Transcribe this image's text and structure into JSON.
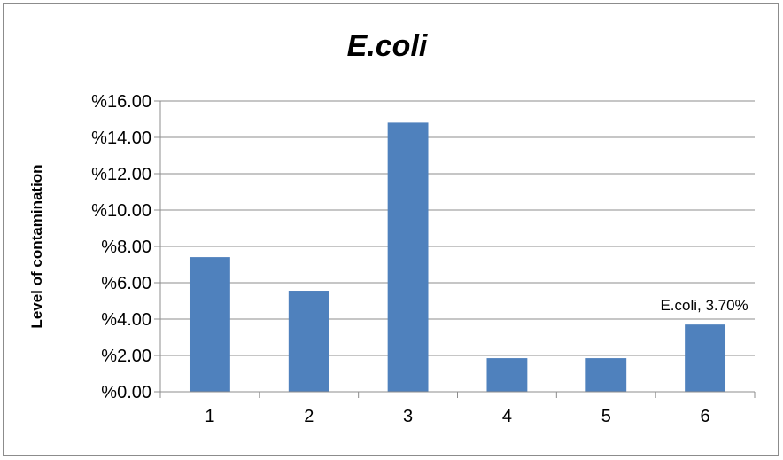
{
  "chart_data": {
    "type": "bar",
    "title": "E.coli",
    "xlabel": "",
    "ylabel": "Level of contamination",
    "categories": [
      "1",
      "2",
      "3",
      "4",
      "5",
      "6"
    ],
    "series": [
      {
        "name": "E.coli",
        "values": [
          7.41,
          5.56,
          14.81,
          1.85,
          1.85,
          3.7
        ],
        "color": "#4f81bd"
      }
    ],
    "ylim": [
      0,
      16
    ],
    "yticks": [
      0,
      2,
      4,
      6,
      8,
      10,
      12,
      14,
      16
    ],
    "ytick_labels": [
      "%0.00",
      "%2.00",
      "%4.00",
      "%6.00",
      "%8.00",
      "%10.00",
      "%12.00",
      "%14.00",
      "%16.00"
    ],
    "grid": true,
    "data_labels": [
      {
        "index": 5,
        "text": "E.coli, 3.70%"
      }
    ]
  }
}
